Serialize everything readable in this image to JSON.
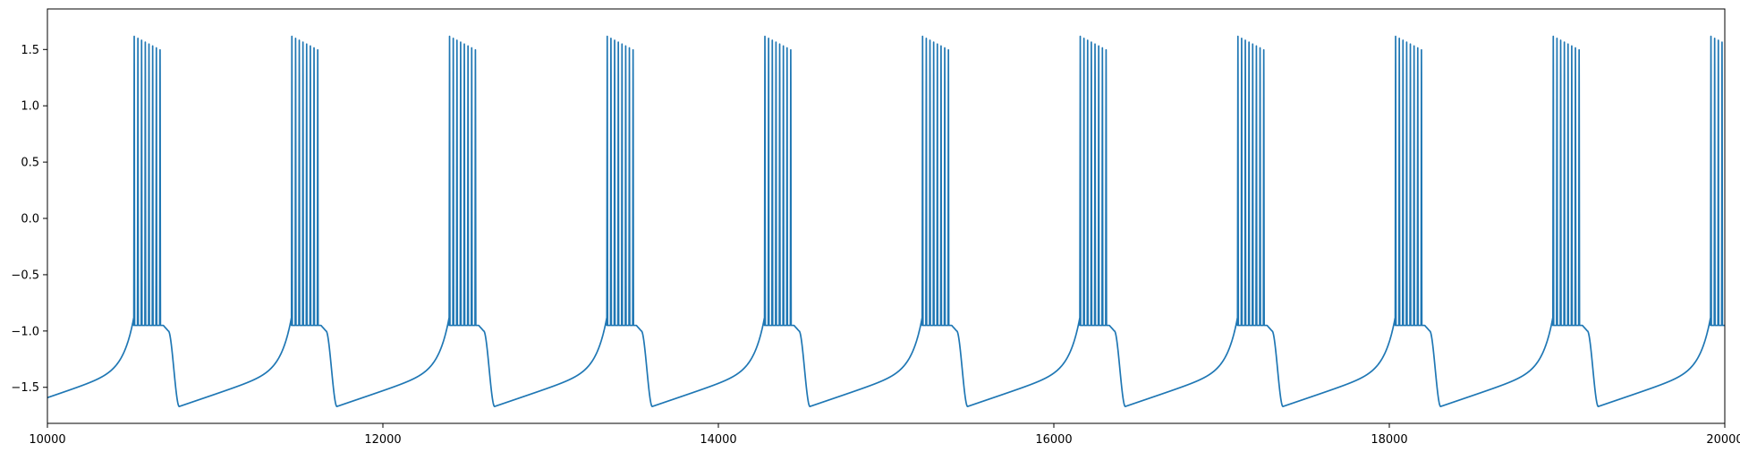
{
  "chart_data": {
    "type": "line",
    "title": "",
    "xlabel": "",
    "ylabel": "",
    "xlim": [
      10000,
      20000
    ],
    "ylim": [
      -1.82,
      1.86
    ],
    "grid": false,
    "legend": "none",
    "x_ticks": [
      10000,
      12000,
      14000,
      16000,
      18000,
      20000
    ],
    "x_tick_labels": [
      "10000",
      "12000",
      "14000",
      "16000",
      "18000",
      "20000"
    ],
    "y_ticks": [
      -1.5,
      -1.0,
      -0.5,
      0.0,
      0.5,
      1.0,
      1.5
    ],
    "y_tick_labels": [
      "−1.5",
      "−1.0",
      "−0.5",
      "0.0",
      "0.5",
      "1.0",
      "1.5"
    ],
    "series": [
      {
        "name": "",
        "color": "#1f77b4",
        "burst_period": 940,
        "first_burst_onset": 10515,
        "spikes_per_burst": 8,
        "spike_interval": 22,
        "spike_peak": 1.76,
        "spike_trough": -0.95,
        "post_burst_minimum": -1.67,
        "initial_value": -1.6,
        "x_samples": [
          10000,
          10300,
          10450,
          10500,
          10515,
          10690,
          10740,
          10780,
          11000,
          11300,
          11450,
          11500
        ],
        "y_samples": [
          -1.6,
          -1.47,
          -1.33,
          -1.18,
          -0.95,
          -0.95,
          -1.35,
          -1.67,
          -1.58,
          -1.47,
          -1.33,
          -1.18
        ]
      }
    ]
  }
}
